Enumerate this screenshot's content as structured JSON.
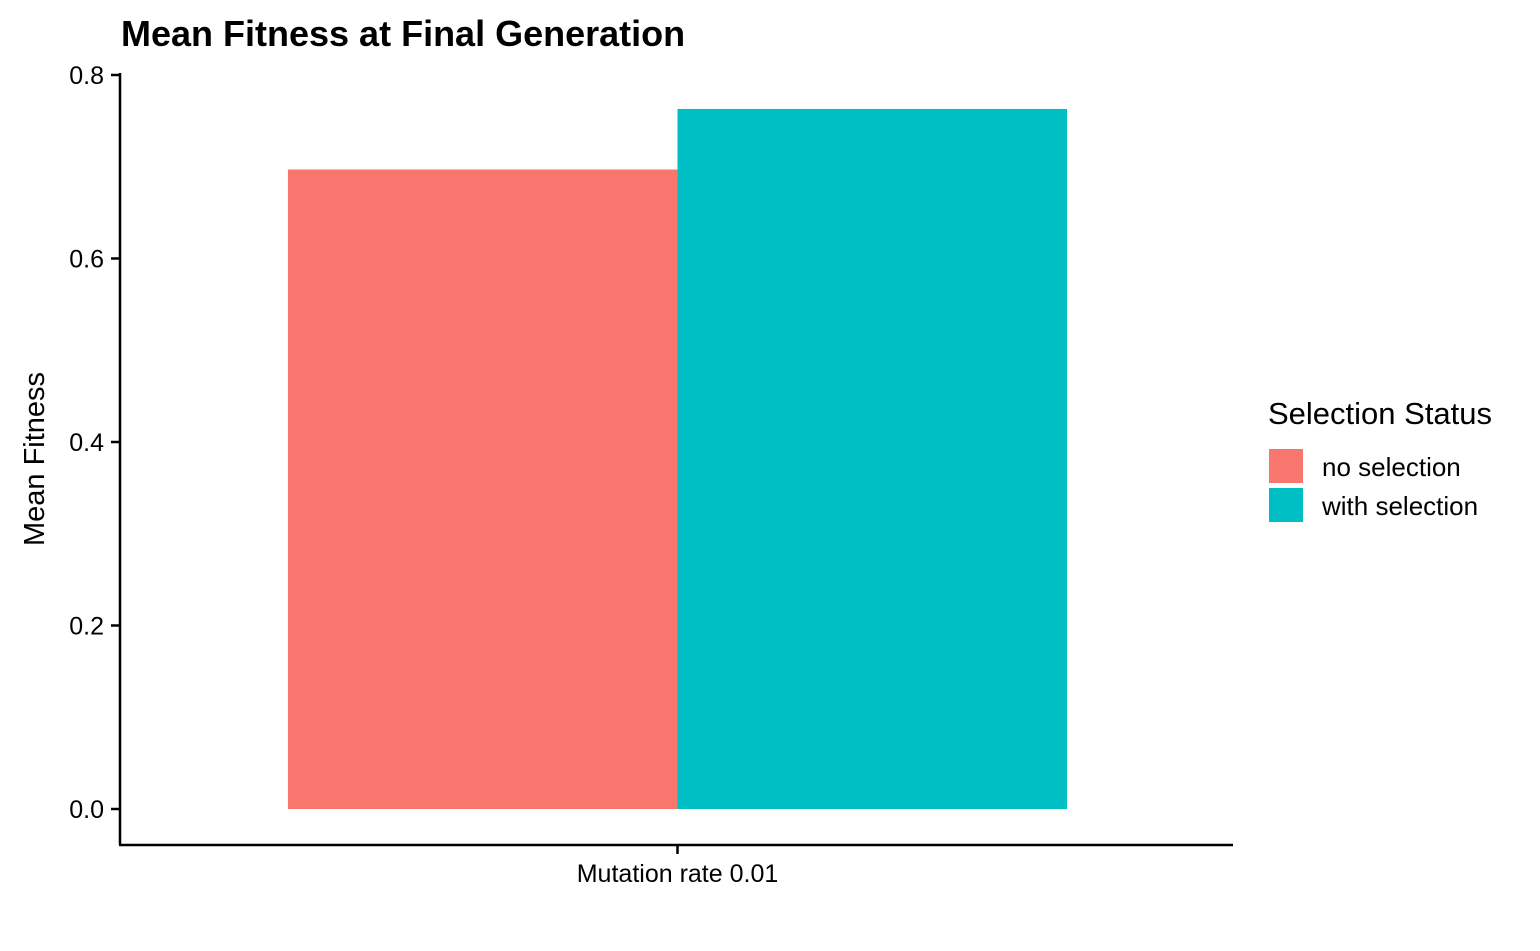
{
  "chart_data": {
    "type": "bar",
    "title": "Mean Fitness at Final Generation",
    "xlabel": "",
    "ylabel": "Mean Fitness",
    "categories": [
      "Mutation rate 0.01"
    ],
    "series": [
      {
        "name": "no selection",
        "values": [
          0.697
        ],
        "color": "#F8766D"
      },
      {
        "name": "with selection",
        "values": [
          0.763
        ],
        "color": "#00BFC4"
      }
    ],
    "ylim": [
      0,
      0.8
    ],
    "yticks": [
      "0.0",
      "0.2",
      "0.4",
      "0.6",
      "0.8"
    ],
    "grid": false,
    "legend": {
      "title": "Selection Status",
      "position": "right"
    }
  }
}
